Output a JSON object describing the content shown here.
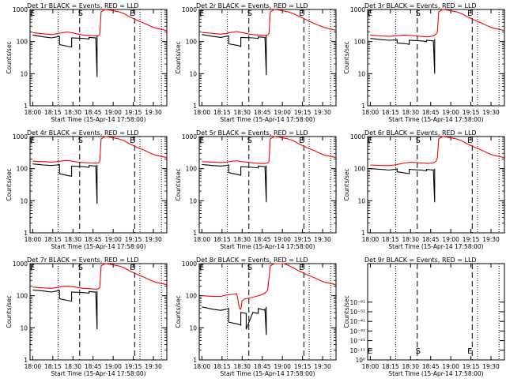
{
  "figure": {
    "xlabel": "Start Time (15-Apr-14 17:58:00)",
    "ylabel": "Counts/sec",
    "x_tick_labels": [
      "18:00",
      "18:15",
      "18:30",
      "18:45",
      "19:00",
      "19:15",
      "19:30"
    ],
    "x_tick_minutes": [
      2,
      17,
      32,
      47,
      62,
      77,
      92
    ],
    "x_range_minutes": [
      0,
      102
    ],
    "colors": {
      "events": "#000000",
      "lld": "#ff0000",
      "axes": "#000000"
    },
    "marker_labels": {
      "start": "S",
      "end": "E"
    }
  },
  "chart_data": [
    {
      "type": "line",
      "scale": "log",
      "title": "Det 1r BLACK = Events, RED = LLD",
      "ylim": [
        1,
        1000
      ],
      "y_tick_labels": [
        "1",
        "10",
        "100",
        "1000"
      ],
      "y_tick_values": [
        1,
        10,
        100,
        1000
      ],
      "dotted_lines_minutes": [
        21,
        82,
        98
      ],
      "dashed_lines_minutes": [
        37,
        78
      ],
      "start_label_minute": 37,
      "end_label_minute": 78,
      "series": [
        {
          "x": [
            2,
            10,
            16,
            20,
            24,
            28,
            32,
            36,
            40,
            45,
            49,
            51,
            52,
            53,
            56,
            60,
            63,
            66,
            70,
            74,
            78,
            82,
            86,
            90,
            94,
            98,
            102
          ],
          "values": [
            190,
            175,
            165,
            175,
            190,
            200,
            185,
            170,
            160,
            155,
            150,
            152,
            170,
            850,
            1000,
            950,
            900,
            850,
            750,
            600,
            500,
            420,
            360,
            300,
            260,
            240,
            220
          ]
        },
        {
          "x": [
            2,
            10,
            16,
            20,
            22,
            22,
            29,
            31,
            31,
            40,
            44,
            44,
            49,
            49,
            50,
            50
          ],
          "values": [
            160,
            140,
            130,
            140,
            145,
            80,
            70,
            68,
            130,
            125,
            120,
            135,
            130,
            135,
            8,
            150
          ]
        }
      ]
    },
    {
      "type": "line",
      "scale": "log",
      "title": "Det 2r BLACK = Events, RED = LLD",
      "ylim": [
        1,
        1000
      ],
      "y_tick_labels": [
        "1",
        "10",
        "100",
        "1000"
      ],
      "y_tick_values": [
        1,
        10,
        100,
        1000
      ],
      "dotted_lines_minutes": [
        21,
        82,
        98
      ],
      "dashed_lines_minutes": [
        37,
        78
      ],
      "start_label_minute": 37,
      "end_label_minute": 78,
      "series": [
        {
          "x": [
            2,
            10,
            16,
            20,
            24,
            28,
            32,
            36,
            40,
            45,
            49,
            51,
            52,
            53,
            56,
            60,
            63,
            66,
            70,
            74,
            78,
            82,
            86,
            90,
            94,
            98,
            102
          ],
          "values": [
            195,
            180,
            170,
            180,
            195,
            205,
            190,
            175,
            165,
            160,
            155,
            160,
            180,
            850,
            1000,
            950,
            900,
            850,
            750,
            620,
            520,
            430,
            360,
            310,
            270,
            245,
            225
          ]
        },
        {
          "x": [
            2,
            10,
            16,
            20,
            22,
            22,
            29,
            31,
            31,
            40,
            44,
            44,
            49,
            49,
            50,
            50
          ],
          "values": [
            165,
            145,
            135,
            145,
            150,
            85,
            75,
            70,
            135,
            130,
            125,
            140,
            135,
            140,
            9,
            155
          ]
        }
      ]
    },
    {
      "type": "line",
      "scale": "log",
      "title": "Det 3r BLACK = Events, RED = LLD",
      "ylim": [
        1,
        1000
      ],
      "y_tick_labels": [
        "1",
        "10",
        "100",
        "1000"
      ],
      "y_tick_values": [
        1,
        10,
        100,
        1000
      ],
      "dotted_lines_minutes": [
        21,
        82,
        98
      ],
      "dashed_lines_minutes": [
        37,
        78
      ],
      "start_label_minute": 37,
      "end_label_minute": 78,
      "series": [
        {
          "x": [
            2,
            10,
            16,
            20,
            24,
            28,
            32,
            36,
            40,
            45,
            49,
            51,
            52,
            53,
            56,
            60,
            63,
            66,
            70,
            74,
            78,
            82,
            86,
            90,
            94,
            98,
            102
          ],
          "values": [
            160,
            150,
            145,
            150,
            155,
            160,
            155,
            150,
            145,
            140,
            150,
            170,
            200,
            850,
            1000,
            950,
            900,
            850,
            750,
            600,
            500,
            420,
            360,
            300,
            260,
            240,
            220
          ]
        },
        {
          "x": [
            2,
            10,
            16,
            20,
            22,
            22,
            29,
            31,
            31,
            40,
            44,
            44,
            49,
            49,
            50,
            50
          ],
          "values": [
            125,
            115,
            110,
            112,
            115,
            90,
            85,
            82,
            110,
            105,
            100,
            110,
            105,
            110,
            10,
            120
          ]
        }
      ]
    },
    {
      "type": "line",
      "scale": "log",
      "title": "Det 4r BLACK = Events, RED = LLD",
      "ylim": [
        1,
        1000
      ],
      "y_tick_labels": [
        "1",
        "10",
        "100",
        "1000"
      ],
      "y_tick_values": [
        1,
        10,
        100,
        1000
      ],
      "dotted_lines_minutes": [
        21,
        82,
        98
      ],
      "dashed_lines_minutes": [
        37,
        78
      ],
      "start_label_minute": 37,
      "end_label_minute": 78,
      "series": [
        {
          "x": [
            2,
            10,
            16,
            20,
            24,
            28,
            32,
            36,
            40,
            45,
            49,
            51,
            52,
            53,
            56,
            60,
            63,
            66,
            70,
            74,
            78,
            82,
            86,
            90,
            94,
            98,
            102
          ],
          "values": [
            170,
            165,
            160,
            165,
            175,
            180,
            170,
            160,
            155,
            150,
            148,
            150,
            165,
            850,
            1000,
            950,
            900,
            850,
            750,
            600,
            500,
            420,
            360,
            300,
            260,
            240,
            220
          ]
        },
        {
          "x": [
            2,
            10,
            16,
            20,
            22,
            22,
            29,
            31,
            31,
            40,
            44,
            44,
            49,
            49,
            50,
            50
          ],
          "values": [
            140,
            130,
            125,
            130,
            135,
            70,
            60,
            58,
            120,
            115,
            110,
            125,
            120,
            125,
            8,
            130
          ]
        }
      ]
    },
    {
      "type": "line",
      "scale": "log",
      "title": "Det 5r BLACK = Events, RED = LLD",
      "ylim": [
        1,
        1000
      ],
      "y_tick_labels": [
        "1",
        "10",
        "100",
        "1000"
      ],
      "y_tick_values": [
        1,
        10,
        100,
        1000
      ],
      "dotted_lines_minutes": [
        21,
        82,
        98
      ],
      "dashed_lines_minutes": [
        37,
        78
      ],
      "start_label_minute": 37,
      "end_label_minute": 78,
      "series": [
        {
          "x": [
            2,
            10,
            16,
            20,
            24,
            28,
            32,
            36,
            40,
            45,
            49,
            51,
            52,
            53,
            56,
            60,
            63,
            66,
            70,
            74,
            78,
            82,
            86,
            90,
            94,
            98,
            102
          ],
          "values": [
            165,
            160,
            155,
            160,
            170,
            175,
            165,
            160,
            150,
            145,
            145,
            150,
            165,
            850,
            1000,
            950,
            900,
            850,
            750,
            600,
            500,
            420,
            360,
            300,
            260,
            240,
            220
          ]
        },
        {
          "x": [
            2,
            10,
            16,
            20,
            22,
            22,
            29,
            31,
            31,
            40,
            44,
            44,
            49,
            49,
            50,
            50
          ],
          "values": [
            135,
            125,
            120,
            125,
            130,
            75,
            65,
            62,
            115,
            110,
            105,
            120,
            115,
            120,
            9,
            125
          ]
        }
      ]
    },
    {
      "type": "line",
      "scale": "log",
      "title": "Det 6r BLACK = Events, RED = LLD",
      "ylim": [
        1,
        1000
      ],
      "y_tick_labels": [
        "1",
        "10",
        "100",
        "1000"
      ],
      "y_tick_values": [
        1,
        10,
        100,
        1000
      ],
      "dotted_lines_minutes": [
        21,
        82,
        98
      ],
      "dashed_lines_minutes": [
        37,
        78
      ],
      "start_label_minute": 37,
      "end_label_minute": 78,
      "series": [
        {
          "x": [
            2,
            10,
            16,
            20,
            24,
            28,
            32,
            36,
            40,
            45,
            49,
            51,
            52,
            53,
            56,
            60,
            63,
            66,
            70,
            74,
            78,
            82,
            86,
            90,
            94,
            98,
            102
          ],
          "values": [
            130,
            125,
            125,
            130,
            140,
            150,
            160,
            155,
            150,
            145,
            150,
            170,
            220,
            850,
            1000,
            950,
            900,
            850,
            750,
            600,
            500,
            420,
            360,
            300,
            260,
            240,
            220
          ]
        },
        {
          "x": [
            2,
            10,
            16,
            20,
            22,
            22,
            29,
            31,
            31,
            40,
            44,
            44,
            49,
            49,
            50,
            50
          ],
          "values": [
            100,
            95,
            90,
            95,
            100,
            80,
            72,
            70,
            95,
            90,
            85,
            95,
            90,
            95,
            9,
            100
          ]
        }
      ]
    },
    {
      "type": "line",
      "scale": "log",
      "title": "Det 7r BLACK = Events, RED = LLD",
      "ylim": [
        1,
        1000
      ],
      "y_tick_labels": [
        "1",
        "10",
        "100",
        "1000"
      ],
      "y_tick_values": [
        1,
        10,
        100,
        1000
      ],
      "dotted_lines_minutes": [
        21,
        82,
        98
      ],
      "dashed_lines_minutes": [
        37,
        78
      ],
      "start_label_minute": 37,
      "end_label_minute": 78,
      "series": [
        {
          "x": [
            2,
            10,
            16,
            20,
            24,
            28,
            32,
            36,
            40,
            45,
            49,
            51,
            52,
            53,
            56,
            60,
            63,
            66,
            70,
            74,
            78,
            82,
            86,
            90,
            94,
            98,
            102
          ],
          "values": [
            185,
            175,
            170,
            180,
            195,
            200,
            190,
            180,
            170,
            165,
            160,
            165,
            180,
            850,
            1000,
            950,
            900,
            850,
            750,
            600,
            500,
            420,
            360,
            300,
            260,
            240,
            220
          ]
        },
        {
          "x": [
            2,
            10,
            16,
            20,
            22,
            22,
            29,
            31,
            31,
            40,
            44,
            44,
            49,
            49,
            50,
            50
          ],
          "values": [
            150,
            140,
            130,
            140,
            145,
            80,
            70,
            68,
            130,
            125,
            120,
            135,
            130,
            135,
            9,
            140
          ]
        }
      ]
    },
    {
      "type": "line",
      "scale": "log",
      "title": "Det 8r BLACK = Events, RED = LLD",
      "ylim": [
        1,
        1000
      ],
      "y_tick_labels": [
        "1",
        "10",
        "100",
        "1000"
      ],
      "y_tick_values": [
        1,
        10,
        100,
        1000
      ],
      "dotted_lines_minutes": [
        21,
        82,
        98
      ],
      "dashed_lines_minutes": [
        37,
        78
      ],
      "start_label_minute": 37,
      "end_label_minute": 78,
      "series": [
        {
          "x": [
            2,
            10,
            16,
            20,
            24,
            28,
            30,
            31,
            32,
            33,
            34,
            38,
            42,
            46,
            49,
            51,
            53,
            56,
            60,
            63,
            66,
            70,
            74,
            78,
            82,
            86,
            90,
            94,
            98,
            102
          ],
          "values": [
            100,
            95,
            95,
            105,
            110,
            115,
            40,
            38,
            70,
            75,
            80,
            85,
            95,
            105,
            120,
            150,
            850,
            1000,
            1000,
            1000,
            900,
            750,
            600,
            500,
            420,
            360,
            300,
            260,
            240,
            220
          ]
        },
        {
          "x": [
            2,
            10,
            16,
            20,
            22,
            22,
            29,
            31,
            31,
            35,
            35,
            40,
            44,
            44,
            49,
            49,
            50,
            50
          ],
          "values": [
            45,
            38,
            35,
            38,
            40,
            15,
            13,
            12,
            30,
            28,
            9,
            30,
            28,
            40,
            35,
            40,
            6,
            45
          ]
        }
      ]
    },
    {
      "type": "line",
      "scale": "log",
      "title": "Det 9r BLACK = Events, RED = LLD",
      "ylim": [
        0,
        10
      ],
      "y_tick_labels": [
        "10⁰",
        "10⁻¹¹",
        "10⁻²¹",
        "10⁻³¹",
        "10⁻⁴¹",
        "10⁻⁵¹",
        "10⁻⁶¹"
      ],
      "y_tick_values": [
        0,
        1,
        2,
        3,
        4,
        5,
        6
      ],
      "dotted_lines_minutes": [
        21,
        82,
        98
      ],
      "dashed_lines_minutes": [
        37,
        78
      ],
      "start_label_minute": 37,
      "end_label_minute": 78,
      "series": []
    }
  ]
}
